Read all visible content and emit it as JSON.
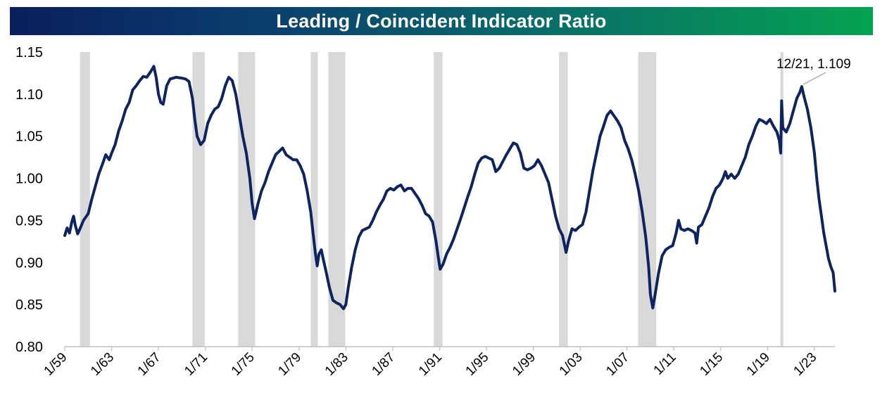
{
  "chart_data": {
    "type": "line",
    "title": "Leading / Coincident Indicator Ratio",
    "xlabel": "",
    "ylabel": "",
    "ylim": [
      0.8,
      1.15
    ],
    "xlim": [
      1959.0,
      2024.75
    ],
    "y_ticks": [
      "0.80",
      "0.85",
      "0.90",
      "0.95",
      "1.00",
      "1.05",
      "1.10",
      "1.15"
    ],
    "x_ticks": [
      "1/59",
      "1/63",
      "1/67",
      "1/71",
      "1/75",
      "1/79",
      "1/83",
      "1/87",
      "1/91",
      "1/95",
      "1/99",
      "1/03",
      "1/07",
      "1/11",
      "1/15",
      "1/19",
      "1/23"
    ],
    "line_color": "#0d2461",
    "recession_color": "#d9d9d9",
    "recessions": [
      [
        1960.3,
        1961.15
      ],
      [
        1969.9,
        1970.95
      ],
      [
        1973.8,
        1975.25
      ],
      [
        1980.0,
        1980.6
      ],
      [
        1981.5,
        1982.95
      ],
      [
        1990.5,
        1991.25
      ],
      [
        2001.2,
        2001.95
      ],
      [
        2007.95,
        2009.5
      ],
      [
        2020.1,
        2020.35
      ]
    ],
    "annotation": {
      "text": "12/21, 1.109",
      "x": 2021.92,
      "y": 1.109
    },
    "series": [
      {
        "name": "Leading / Coincident Indicator Ratio",
        "points": [
          [
            1959.0,
            0.932
          ],
          [
            1959.2,
            0.941
          ],
          [
            1959.4,
            0.935
          ],
          [
            1959.6,
            0.948
          ],
          [
            1959.75,
            0.955
          ],
          [
            1959.9,
            0.944
          ],
          [
            1960.1,
            0.934
          ],
          [
            1960.3,
            0.94
          ],
          [
            1960.6,
            0.95
          ],
          [
            1961.0,
            0.958
          ],
          [
            1961.3,
            0.975
          ],
          [
            1961.6,
            0.99
          ],
          [
            1961.9,
            1.005
          ],
          [
            1962.2,
            1.016
          ],
          [
            1962.5,
            1.028
          ],
          [
            1962.8,
            1.022
          ],
          [
            1963.0,
            1.03
          ],
          [
            1963.3,
            1.04
          ],
          [
            1963.6,
            1.056
          ],
          [
            1963.9,
            1.068
          ],
          [
            1964.2,
            1.082
          ],
          [
            1964.5,
            1.09
          ],
          [
            1964.8,
            1.105
          ],
          [
            1965.1,
            1.11
          ],
          [
            1965.4,
            1.116
          ],
          [
            1965.7,
            1.121
          ],
          [
            1966.0,
            1.12
          ],
          [
            1966.3,
            1.126
          ],
          [
            1966.6,
            1.133
          ],
          [
            1966.8,
            1.12
          ],
          [
            1967.0,
            1.1
          ],
          [
            1967.2,
            1.09
          ],
          [
            1967.4,
            1.088
          ],
          [
            1967.7,
            1.11
          ],
          [
            1968.0,
            1.118
          ],
          [
            1968.5,
            1.12
          ],
          [
            1969.0,
            1.119
          ],
          [
            1969.3,
            1.118
          ],
          [
            1969.6,
            1.115
          ],
          [
            1969.9,
            1.095
          ],
          [
            1970.1,
            1.07
          ],
          [
            1970.3,
            1.05
          ],
          [
            1970.6,
            1.04
          ],
          [
            1970.9,
            1.045
          ],
          [
            1971.2,
            1.065
          ],
          [
            1971.5,
            1.075
          ],
          [
            1971.8,
            1.082
          ],
          [
            1972.1,
            1.085
          ],
          [
            1972.4,
            1.095
          ],
          [
            1972.7,
            1.11
          ],
          [
            1973.0,
            1.12
          ],
          [
            1973.3,
            1.116
          ],
          [
            1973.6,
            1.1
          ],
          [
            1973.9,
            1.075
          ],
          [
            1974.2,
            1.05
          ],
          [
            1974.5,
            1.03
          ],
          [
            1974.8,
            1.0
          ],
          [
            1975.0,
            0.97
          ],
          [
            1975.2,
            0.952
          ],
          [
            1975.5,
            0.97
          ],
          [
            1975.8,
            0.985
          ],
          [
            1976.1,
            0.995
          ],
          [
            1976.4,
            1.008
          ],
          [
            1976.7,
            1.018
          ],
          [
            1977.0,
            1.028
          ],
          [
            1977.3,
            1.032
          ],
          [
            1977.6,
            1.036
          ],
          [
            1977.9,
            1.028
          ],
          [
            1978.2,
            1.025
          ],
          [
            1978.5,
            1.022
          ],
          [
            1978.8,
            1.022
          ],
          [
            1979.1,
            1.015
          ],
          [
            1979.4,
            1.005
          ],
          [
            1979.7,
            0.985
          ],
          [
            1980.0,
            0.96
          ],
          [
            1980.2,
            0.935
          ],
          [
            1980.4,
            0.91
          ],
          [
            1980.55,
            0.896
          ],
          [
            1980.7,
            0.91
          ],
          [
            1980.9,
            0.915
          ],
          [
            1981.1,
            0.902
          ],
          [
            1981.3,
            0.89
          ],
          [
            1981.6,
            0.87
          ],
          [
            1981.9,
            0.855
          ],
          [
            1982.2,
            0.852
          ],
          [
            1982.5,
            0.85
          ],
          [
            1982.8,
            0.845
          ],
          [
            1983.0,
            0.85
          ],
          [
            1983.2,
            0.87
          ],
          [
            1983.5,
            0.895
          ],
          [
            1983.8,
            0.915
          ],
          [
            1984.1,
            0.93
          ],
          [
            1984.4,
            0.938
          ],
          [
            1984.7,
            0.94
          ],
          [
            1985.0,
            0.942
          ],
          [
            1985.3,
            0.95
          ],
          [
            1985.6,
            0.96
          ],
          [
            1985.9,
            0.968
          ],
          [
            1986.2,
            0.975
          ],
          [
            1986.5,
            0.985
          ],
          [
            1986.8,
            0.988
          ],
          [
            1987.1,
            0.986
          ],
          [
            1987.4,
            0.99
          ],
          [
            1987.7,
            0.992
          ],
          [
            1988.0,
            0.985
          ],
          [
            1988.3,
            0.988
          ],
          [
            1988.6,
            0.988
          ],
          [
            1988.9,
            0.982
          ],
          [
            1989.2,
            0.976
          ],
          [
            1989.5,
            0.968
          ],
          [
            1989.8,
            0.958
          ],
          [
            1990.1,
            0.955
          ],
          [
            1990.4,
            0.948
          ],
          [
            1990.7,
            0.925
          ],
          [
            1990.9,
            0.905
          ],
          [
            1991.05,
            0.892
          ],
          [
            1991.3,
            0.898
          ],
          [
            1991.6,
            0.91
          ],
          [
            1991.9,
            0.918
          ],
          [
            1992.2,
            0.928
          ],
          [
            1992.5,
            0.94
          ],
          [
            1992.8,
            0.952
          ],
          [
            1993.1,
            0.965
          ],
          [
            1993.4,
            0.978
          ],
          [
            1993.7,
            0.99
          ],
          [
            1994.0,
            1.005
          ],
          [
            1994.3,
            1.018
          ],
          [
            1994.6,
            1.024
          ],
          [
            1994.9,
            1.026
          ],
          [
            1995.2,
            1.024
          ],
          [
            1995.5,
            1.022
          ],
          [
            1995.8,
            1.008
          ],
          [
            1996.1,
            1.012
          ],
          [
            1996.4,
            1.02
          ],
          [
            1996.7,
            1.028
          ],
          [
            1997.0,
            1.035
          ],
          [
            1997.3,
            1.042
          ],
          [
            1997.6,
            1.04
          ],
          [
            1997.9,
            1.03
          ],
          [
            1998.2,
            1.012
          ],
          [
            1998.5,
            1.01
          ],
          [
            1998.8,
            1.012
          ],
          [
            1999.1,
            1.015
          ],
          [
            1999.4,
            1.022
          ],
          [
            1999.7,
            1.015
          ],
          [
            2000.0,
            1.005
          ],
          [
            2000.3,
            0.995
          ],
          [
            2000.6,
            0.975
          ],
          [
            2000.9,
            0.955
          ],
          [
            2001.2,
            0.94
          ],
          [
            2001.5,
            0.932
          ],
          [
            2001.8,
            0.912
          ],
          [
            2002.0,
            0.925
          ],
          [
            2002.3,
            0.94
          ],
          [
            2002.6,
            0.938
          ],
          [
            2002.9,
            0.942
          ],
          [
            2003.2,
            0.945
          ],
          [
            2003.5,
            0.96
          ],
          [
            2003.8,
            0.985
          ],
          [
            2004.1,
            1.01
          ],
          [
            2004.4,
            1.03
          ],
          [
            2004.7,
            1.05
          ],
          [
            2005.0,
            1.062
          ],
          [
            2005.3,
            1.075
          ],
          [
            2005.6,
            1.08
          ],
          [
            2005.9,
            1.074
          ],
          [
            2006.2,
            1.068
          ],
          [
            2006.5,
            1.06
          ],
          [
            2006.8,
            1.045
          ],
          [
            2007.1,
            1.035
          ],
          [
            2007.4,
            1.022
          ],
          [
            2007.7,
            1.005
          ],
          [
            2008.0,
            0.985
          ],
          [
            2008.3,
            0.96
          ],
          [
            2008.6,
            0.93
          ],
          [
            2008.85,
            0.895
          ],
          [
            2009.0,
            0.862
          ],
          [
            2009.2,
            0.846
          ],
          [
            2009.4,
            0.862
          ],
          [
            2009.7,
            0.888
          ],
          [
            2010.0,
            0.908
          ],
          [
            2010.3,
            0.915
          ],
          [
            2010.6,
            0.918
          ],
          [
            2010.9,
            0.92
          ],
          [
            2011.2,
            0.935
          ],
          [
            2011.4,
            0.95
          ],
          [
            2011.6,
            0.94
          ],
          [
            2011.9,
            0.938
          ],
          [
            2012.2,
            0.94
          ],
          [
            2012.5,
            0.938
          ],
          [
            2012.8,
            0.935
          ],
          [
            2012.95,
            0.923
          ],
          [
            2013.1,
            0.942
          ],
          [
            2013.4,
            0.945
          ],
          [
            2013.7,
            0.955
          ],
          [
            2014.0,
            0.965
          ],
          [
            2014.3,
            0.978
          ],
          [
            2014.6,
            0.988
          ],
          [
            2014.9,
            0.992
          ],
          [
            2015.2,
            1.0
          ],
          [
            2015.4,
            1.008
          ],
          [
            2015.6,
            1.0
          ],
          [
            2015.9,
            1.005
          ],
          [
            2016.2,
            1.0
          ],
          [
            2016.5,
            1.005
          ],
          [
            2016.8,
            1.015
          ],
          [
            2017.1,
            1.025
          ],
          [
            2017.4,
            1.04
          ],
          [
            2017.7,
            1.05
          ],
          [
            2018.0,
            1.062
          ],
          [
            2018.3,
            1.07
          ],
          [
            2018.6,
            1.068
          ],
          [
            2018.9,
            1.065
          ],
          [
            2019.2,
            1.07
          ],
          [
            2019.5,
            1.062
          ],
          [
            2019.8,
            1.055
          ],
          [
            2020.0,
            1.045
          ],
          [
            2020.12,
            1.03
          ],
          [
            2020.2,
            1.092
          ],
          [
            2020.3,
            1.06
          ],
          [
            2020.6,
            1.055
          ],
          [
            2020.9,
            1.065
          ],
          [
            2021.2,
            1.08
          ],
          [
            2021.5,
            1.095
          ],
          [
            2021.75,
            1.102
          ],
          [
            2021.92,
            1.109
          ],
          [
            2022.1,
            1.098
          ],
          [
            2022.4,
            1.082
          ],
          [
            2022.7,
            1.06
          ],
          [
            2023.0,
            1.03
          ],
          [
            2023.2,
            1.0
          ],
          [
            2023.4,
            0.975
          ],
          [
            2023.6,
            0.955
          ],
          [
            2023.8,
            0.935
          ],
          [
            2024.0,
            0.92
          ],
          [
            2024.2,
            0.905
          ],
          [
            2024.4,
            0.895
          ],
          [
            2024.6,
            0.888
          ],
          [
            2024.75,
            0.866
          ]
        ]
      }
    ]
  }
}
